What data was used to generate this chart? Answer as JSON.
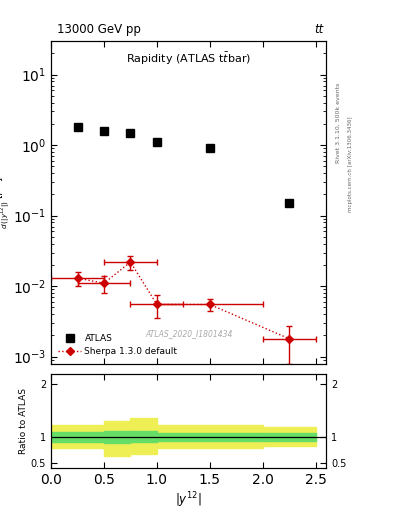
{
  "title_top": "13000 GeV pp",
  "title_right": "tt",
  "plot_title": "Rapidity (ATLAS t̅̅bar)",
  "xlabel": "|y^{12}|",
  "ylabel_ratio": "Ratio to ATLAS",
  "watermark": "ATLAS_2020_I1801434",
  "right_label": "Rivet 3.1.10, 500k events",
  "right_label2": "mcplots.cern.ch [arXiv:1306.3436]",
  "atlas_x": [
    0.25,
    0.5,
    0.75,
    1.0,
    1.5,
    2.25
  ],
  "atlas_y": [
    1.8,
    1.6,
    1.5,
    1.1,
    0.9,
    0.15
  ],
  "sherpa_x": [
    0.25,
    0.5,
    0.75,
    1.0,
    1.5,
    2.25
  ],
  "sherpa_y": [
    0.013,
    0.011,
    0.022,
    0.0055,
    0.0055,
    0.0018
  ],
  "sherpa_yerr_lo": [
    0.003,
    0.003,
    0.005,
    0.002,
    0.001,
    0.001
  ],
  "sherpa_yerr_hi": [
    0.003,
    0.003,
    0.005,
    0.002,
    0.001,
    0.0009
  ],
  "sherpa_xerr": [
    0.25,
    0.25,
    0.25,
    0.25,
    0.5,
    0.25
  ],
  "ratio_x_edges": [
    0.0,
    0.5,
    0.75,
    1.0,
    2.0,
    2.5
  ],
  "ratio_green_lo": [
    0.9,
    0.88,
    0.9,
    0.93,
    0.93,
    0.93
  ],
  "ratio_green_hi": [
    1.1,
    1.12,
    1.12,
    1.08,
    1.07,
    1.07
  ],
  "ratio_yellow_lo": [
    0.78,
    0.63,
    0.68,
    0.78,
    0.82,
    0.82
  ],
  "ratio_yellow_hi": [
    1.22,
    1.3,
    1.35,
    1.22,
    1.18,
    1.18
  ],
  "xlim": [
    0,
    2.6
  ],
  "ylim_main": [
    0.0008,
    30
  ],
  "ylim_ratio": [
    0.4,
    2.2
  ],
  "color_atlas": "#000000",
  "color_sherpa": "#cc0000",
  "color_green": "#66dd66",
  "color_yellow": "#eeee55",
  "color_watermark": "#aaaaaa",
  "color_right_text": "#666666"
}
